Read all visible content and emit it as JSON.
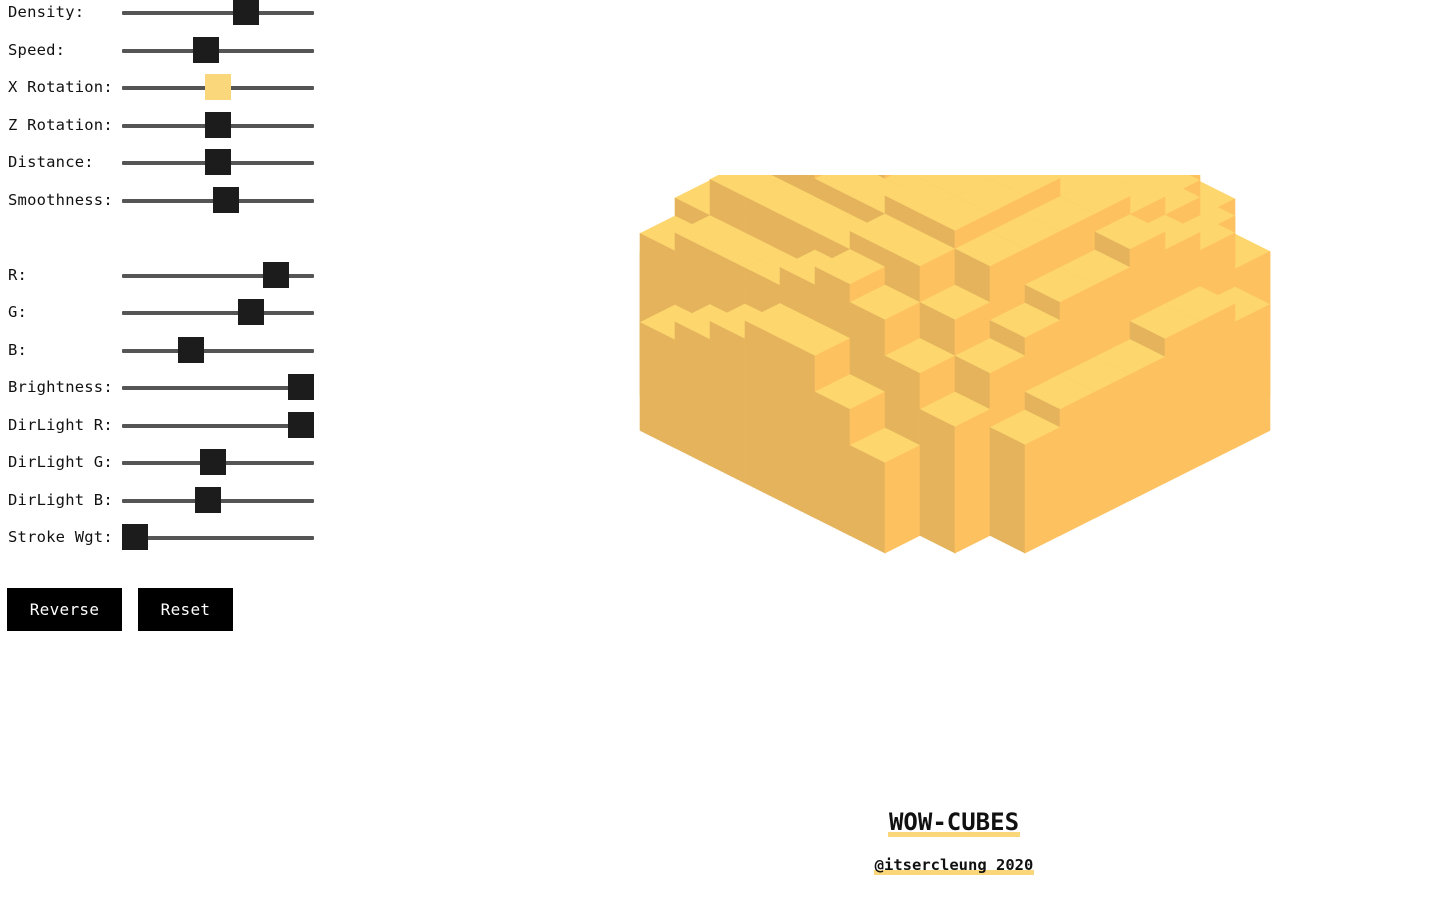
{
  "sliders": [
    {
      "id": "density",
      "label": "Density:",
      "value": 0.67
    },
    {
      "id": "speed",
      "label": "Speed:",
      "value": 0.43
    },
    {
      "id": "x-rotation",
      "label": "X Rotation:",
      "value": 0.5,
      "active": true
    },
    {
      "id": "z-rotation",
      "label": "Z Rotation:",
      "value": 0.5
    },
    {
      "id": "distance",
      "label": "Distance:",
      "value": 0.5
    },
    {
      "id": "smoothness",
      "label": "Smoothness:",
      "value": 0.55
    },
    {
      "id": "r",
      "label": "R:",
      "value": 0.85
    },
    {
      "id": "g",
      "label": "G:",
      "value": 0.7
    },
    {
      "id": "b",
      "label": "B:",
      "value": 0.34
    },
    {
      "id": "brightness",
      "label": "Brightness:",
      "value": 1.0
    },
    {
      "id": "dirlight-r",
      "label": "DirLight R:",
      "value": 1.0
    },
    {
      "id": "dirlight-g",
      "label": "DirLight G:",
      "value": 0.47
    },
    {
      "id": "dirlight-b",
      "label": "DirLight B:",
      "value": 0.44
    },
    {
      "id": "stroke-wgt",
      "label": "Stroke Wgt:",
      "value": 0.0
    }
  ],
  "buttons": {
    "reverse": "Reverse",
    "reset": "Reset"
  },
  "title": "WOW-CUBES",
  "credit": "@itsercleung 2020",
  "colors": {
    "top": "#fdd66e",
    "left": "#e4b35c",
    "right": "#fec160",
    "thumb": "#1c1c1c",
    "thumb_active": "#fbd77c",
    "track": "#555555"
  }
}
